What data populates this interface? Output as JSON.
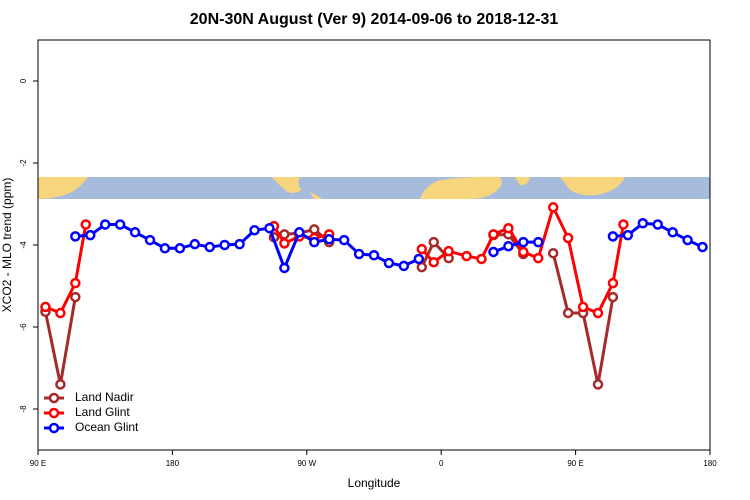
{
  "chart_data": {
    "type": "line",
    "title": "20N-30N August (Ver 9)   2014-09-06 to 2018-12-31",
    "x_label": "Longitude",
    "y_label": "XCO2 - MLO trend (ppm)",
    "xlim": [
      90,
      540
    ],
    "ylim": [
      -9,
      1
    ],
    "xticks": [
      {
        "value": 90,
        "label": "90 E"
      },
      180,
      {
        "value": 270,
        "label": "90 W"
      },
      {
        "value": 360,
        "label": "0"
      },
      {
        "value": 450,
        "label": "90 E"
      },
      {
        "value": 540,
        "label": "180"
      }
    ],
    "yticks": [
      0,
      -2,
      -4,
      -6,
      -8
    ],
    "legend": "bottom-left",
    "series": [
      {
        "name": "Land Nadir",
        "color": "#a52a2a",
        "x": [
          95,
          105,
          115,
          120,
          248,
          255,
          265,
          275,
          285,
          300,
          347,
          355,
          365,
          380,
          395,
          405,
          415,
          425,
          435,
          445,
          455,
          465,
          475
        ],
        "values": [
          -5.63,
          -7.4,
          -5.27,
          null,
          -3.81,
          -3.74,
          -3.71,
          -3.62,
          -3.93,
          null,
          -4.54,
          -3.93,
          -4.32,
          null,
          -3.76,
          -3.74,
          -4.22,
          null,
          -4.2,
          -5.66,
          -5.66,
          -7.4,
          -5.27
        ]
      },
      {
        "name": "Land Glint",
        "color": "#ff0000",
        "x": [
          95,
          105,
          115,
          122,
          200,
          248,
          255,
          265,
          275,
          285,
          300,
          347,
          355,
          365,
          377,
          387,
          395,
          405,
          415,
          425,
          435,
          445,
          455,
          465,
          475,
          482
        ],
        "values": [
          -5.51,
          -5.66,
          -4.93,
          -3.5,
          null,
          -3.54,
          -3.96,
          -3.79,
          -3.83,
          -3.74,
          null,
          -4.1,
          -4.42,
          -4.15,
          -4.27,
          -4.34,
          -3.74,
          -3.59,
          -4.17,
          -4.32,
          -3.08,
          -3.83,
          -5.51,
          -5.66,
          -4.93,
          -3.5
        ]
      },
      {
        "name": "Ocean Glint",
        "color": "#0000ff",
        "x": [
          115,
          125,
          135,
          145,
          155,
          165,
          175,
          185,
          195,
          205,
          215,
          225,
          235,
          245,
          255,
          265,
          275,
          285,
          295,
          305,
          315,
          325,
          335,
          345,
          370,
          395,
          405,
          415,
          425,
          450,
          475,
          485,
          495,
          505,
          515,
          525,
          535
        ],
        "values": [
          -3.79,
          -3.76,
          -3.5,
          -3.5,
          -3.69,
          -3.88,
          -4.08,
          -4.08,
          -3.98,
          -4.05,
          -4.0,
          -3.98,
          -3.64,
          -3.59,
          -4.56,
          -3.69,
          -3.93,
          -3.86,
          -3.88,
          -4.22,
          -4.25,
          -4.44,
          -4.51,
          -4.34,
          null,
          -4.17,
          -4.03,
          -3.93,
          -3.93,
          null,
          -3.79,
          -3.76,
          -3.47,
          -3.5,
          -3.69,
          -3.88,
          -4.05
        ]
      }
    ]
  }
}
